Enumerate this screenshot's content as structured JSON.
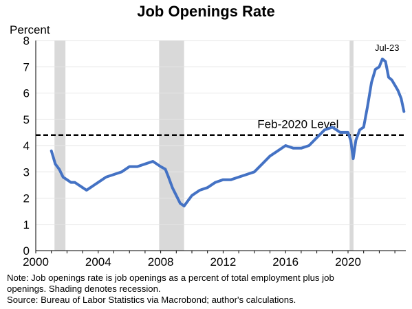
{
  "chart_data": {
    "type": "line",
    "title": "Job Openings Rate",
    "ylabel": "Percent",
    "xlim": [
      2000,
      2023.7
    ],
    "ylim": [
      0,
      8
    ],
    "x_ticks": [
      2000,
      2004,
      2008,
      2012,
      2016,
      2020
    ],
    "y_ticks": [
      0,
      1,
      2,
      3,
      4,
      5,
      6,
      7,
      8
    ],
    "series": [
      {
        "color": "#4472c4",
        "x": [
          2001.0,
          2001.1,
          2001.25,
          2001.5,
          2001.75,
          2002.0,
          2002.25,
          2002.5,
          2002.75,
          2003.0,
          2003.25,
          2003.5,
          2003.75,
          2004.0,
          2004.5,
          2005.0,
          2005.5,
          2006.0,
          2006.5,
          2007.0,
          2007.5,
          2008.0,
          2008.3,
          2008.5,
          2008.75,
          2009.0,
          2009.25,
          2009.5,
          2009.75,
          2010.0,
          2010.5,
          2011.0,
          2011.5,
          2012.0,
          2012.5,
          2013.0,
          2013.5,
          2014.0,
          2014.5,
          2015.0,
          2015.5,
          2016.0,
          2016.5,
          2017.0,
          2017.5,
          2018.0,
          2018.5,
          2019.0,
          2019.5,
          2020.0,
          2020.17,
          2020.33,
          2020.5,
          2020.75,
          2021.0,
          2021.25,
          2021.5,
          2021.75,
          2022.0,
          2022.2,
          2022.4,
          2022.6,
          2022.8,
          2023.0,
          2023.2,
          2023.4,
          2023.58
        ],
        "y": [
          3.8,
          3.6,
          3.3,
          3.1,
          2.8,
          2.7,
          2.6,
          2.6,
          2.5,
          2.4,
          2.3,
          2.4,
          2.5,
          2.6,
          2.8,
          2.9,
          3.0,
          3.2,
          3.2,
          3.3,
          3.4,
          3.2,
          3.1,
          2.8,
          2.4,
          2.1,
          1.8,
          1.7,
          1.9,
          2.1,
          2.3,
          2.4,
          2.6,
          2.7,
          2.7,
          2.8,
          2.9,
          3.0,
          3.3,
          3.6,
          3.8,
          4.0,
          3.9,
          3.9,
          4.0,
          4.3,
          4.6,
          4.7,
          4.5,
          4.5,
          4.2,
          3.5,
          4.2,
          4.6,
          4.7,
          5.5,
          6.4,
          6.9,
          7.0,
          7.3,
          7.2,
          6.6,
          6.5,
          6.3,
          6.1,
          5.8,
          5.3
        ]
      }
    ],
    "reference_line": {
      "label": "Feb-2020 Level",
      "y": 4.4,
      "style": "dashed"
    },
    "recessions": [
      [
        2001.2,
        2001.9
      ],
      [
        2007.9,
        2009.5
      ],
      [
        2020.1,
        2020.35
      ]
    ],
    "annotations": [
      {
        "text": "Jul-23",
        "x": 2022.5,
        "y": 7.3
      }
    ],
    "grid": true
  },
  "notes": {
    "line1": "Note: Job openings rate is job openings as a percent of total employment plus job",
    "line2": "openings. Shading denotes recession.",
    "line3": "Source: Bureau of Labor Statistics via Macrobond; author's calculations."
  }
}
